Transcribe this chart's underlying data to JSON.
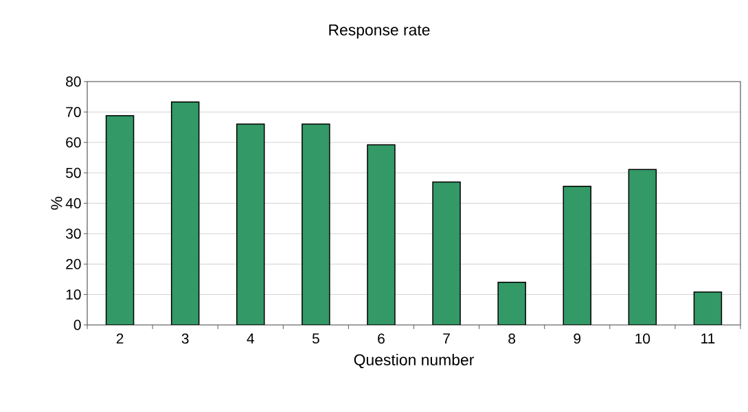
{
  "chart_data": {
    "type": "bar",
    "title": "Response rate",
    "xlabel": "Question number",
    "ylabel": "%",
    "categories": [
      "2",
      "3",
      "4",
      "5",
      "6",
      "7",
      "8",
      "9",
      "10",
      "11"
    ],
    "values": [
      68.8,
      73.3,
      66.0,
      66.0,
      59.2,
      47.0,
      14.0,
      45.6,
      51.1,
      10.8
    ],
    "color": "#339966",
    "ylim": [
      0,
      80
    ],
    "yticks": [
      0,
      10,
      20,
      30,
      40,
      50,
      60,
      70,
      80
    ],
    "grid": "y"
  }
}
